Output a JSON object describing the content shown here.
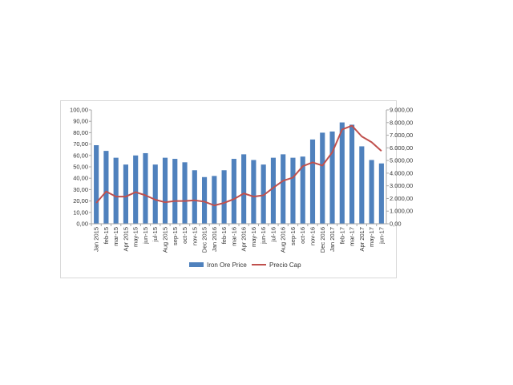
{
  "chart_data": {
    "type": "bar",
    "title": "",
    "xlabel": "",
    "ylabel": "",
    "categories": [
      "Jan 2015",
      "feb-15",
      "mar-15",
      "Apr 2015",
      "may-15",
      "jun-15",
      "jul-15",
      "Aug 2015",
      "sep-15",
      "oct-15",
      "nov-15",
      "Dec 2015",
      "Jan 2016",
      "feb-16",
      "mar-16",
      "Apr 2016",
      "may-16",
      "jun-16",
      "jul-16",
      "Aug 2016",
      "sep-16",
      "oct-16",
      "nov-16",
      "Dec 2016",
      "Jan 2017",
      "feb-17",
      "mar-17",
      "Apr 2017",
      "may-17",
      "jun-17"
    ],
    "series": [
      {
        "name": "Iron Ore Price",
        "type": "bar",
        "axis": "left",
        "color": "#4f81bd",
        "values": [
          69,
          64,
          58,
          52,
          60,
          62,
          52,
          58,
          57,
          54,
          47,
          41,
          42,
          47,
          57,
          61,
          56,
          52,
          58,
          61,
          58,
          59,
          74,
          80,
          81,
          89,
          87,
          68,
          56,
          53
        ]
      },
      {
        "name": "Precio Cap",
        "type": "line",
        "axis": "right",
        "color": "#c0504d",
        "values": [
          1650,
          2550,
          2150,
          2150,
          2500,
          2250,
          1900,
          1700,
          1800,
          1800,
          1850,
          1750,
          1450,
          1650,
          1950,
          2400,
          2150,
          2250,
          2850,
          3400,
          3650,
          4550,
          4850,
          4600,
          5650,
          7450,
          7750,
          6900,
          6450,
          5750
        ]
      }
    ],
    "y_left": {
      "ylim": [
        0,
        100
      ],
      "ticks": [
        "0,00",
        "10,00",
        "20,00",
        "30,00",
        "40,00",
        "50,00",
        "60,00",
        "70,00",
        "80,00",
        "90,00",
        "100,00"
      ]
    },
    "y_right": {
      "ylim": [
        0,
        9000
      ],
      "ticks": [
        "0,00",
        "1.000,00",
        "2.000,00",
        "3.000,00",
        "4.000,00",
        "5.000,00",
        "6.000,00",
        "7.000,00",
        "8.000,00",
        "9.000,00"
      ]
    },
    "grid": false,
    "legend_position": "bottom"
  }
}
